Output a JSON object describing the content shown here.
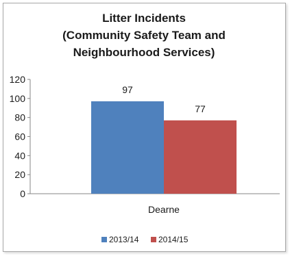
{
  "chart_data": {
    "type": "bar",
    "title_lines": [
      "Litter Incidents",
      "(Community Safety Team and",
      "Neighbourhood  Services)"
    ],
    "categories": [
      "Dearne"
    ],
    "series": [
      {
        "name": "2013/14",
        "values": [
          97
        ],
        "color": "#4f81bd"
      },
      {
        "name": "2014/15",
        "values": [
          77
        ],
        "color": "#c0504d"
      }
    ],
    "ylim": [
      0,
      120
    ],
    "yticks": [
      0,
      20,
      40,
      60,
      80,
      100,
      120
    ],
    "grid": false,
    "legend": "bottom",
    "data_labels": true
  }
}
